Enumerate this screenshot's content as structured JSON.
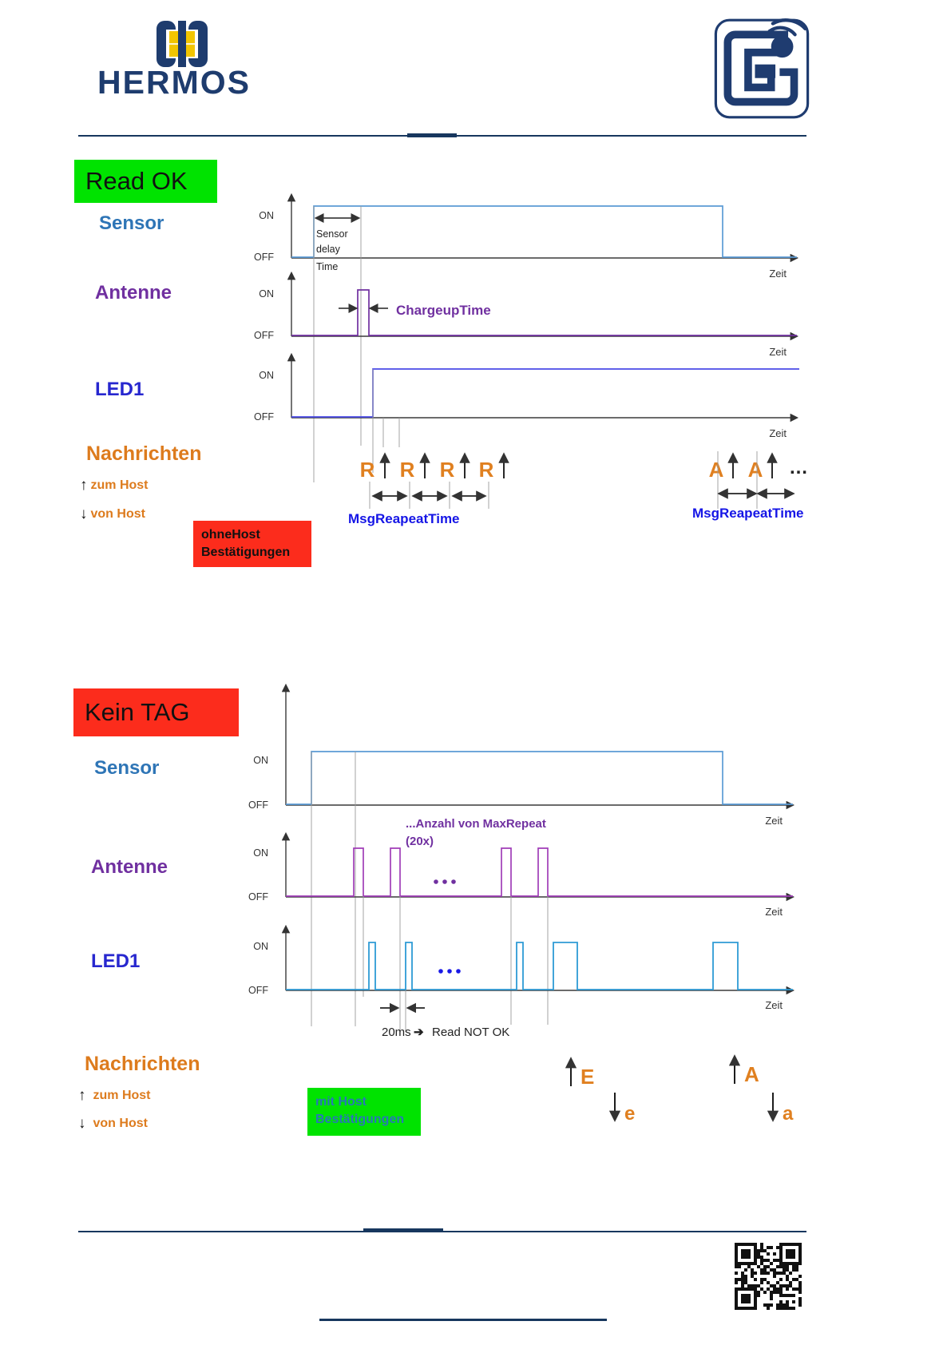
{
  "header": {
    "brand": "HERMOS"
  },
  "axis": {
    "on": "ON",
    "off": "OFF",
    "zeit": "Zeit"
  },
  "colors": {
    "highlight_green": "#00e300",
    "highlight_red": "#fc2c1c",
    "sensor_blue": "#2e75b6",
    "antenne_purple": "#7030a0",
    "led1_blue": "#2727cf",
    "nachrichten_orange": "#dd7b1d",
    "message_blue": "#1515e6",
    "waveform_sensor": "#5b9bd5",
    "waveform_led_readok": "#4a4ae8",
    "waveform_led_keintag": "#2e9bd5",
    "brand_navy": "#1e3c6e"
  },
  "read_ok": {
    "title": "Read OK",
    "sensor": "Sensor",
    "antenne": "Antenne",
    "led1": "LED1",
    "nachrichten": "Nachrichten",
    "zum_host": "zum Host",
    "von_host": "von Host",
    "delay1": "Sensor",
    "delay2": "delay",
    "delay3": "Time",
    "chargeup": "ChargeupTime",
    "msg_repeat": "MsgReapeatTime",
    "r": "R",
    "a": "A",
    "dots": "…",
    "note1": "ohneHost",
    "note2": "Bestätigungen"
  },
  "kein_tag": {
    "title": "Kein TAG",
    "sensor": "Sensor",
    "antenne": "Antenne",
    "led1": "LED1",
    "nachrichten": "Nachrichten",
    "zum_host": "zum Host",
    "von_host": "von Host",
    "maxrep1": "...Anzahl von MaxRepeat",
    "maxrep2": "(20x)",
    "ms": "20ms",
    "arrow": "➔",
    "not_ok": "Read NOT OK",
    "note1": "mit Host",
    "note2": "Bestätigungen",
    "e_up": "E",
    "e_down": "e",
    "a_up": "A",
    "a_down": "a"
  }
}
